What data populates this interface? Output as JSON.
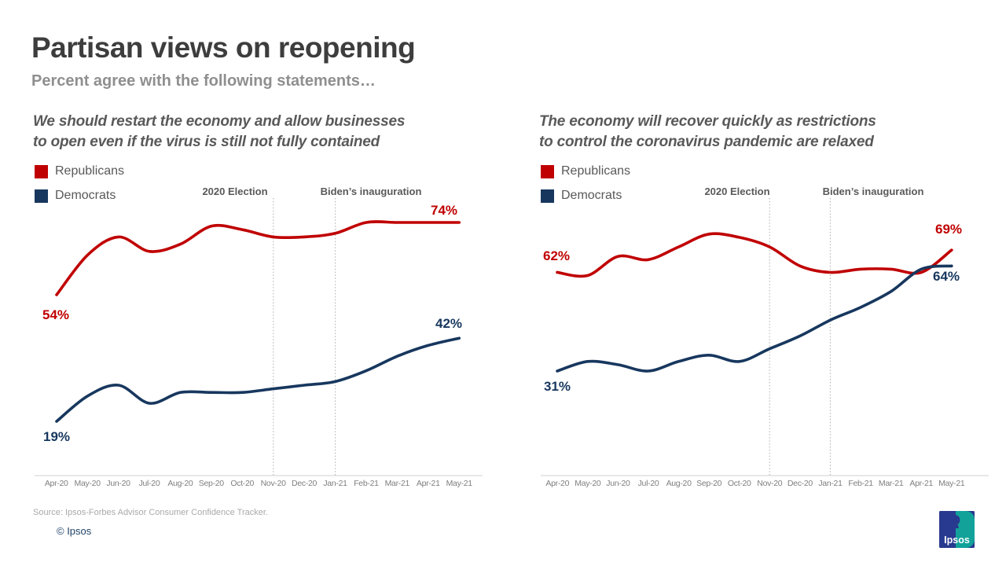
{
  "header": {
    "title": "Partisan views on reopening",
    "subtitle": "Percent agree with the following statements…"
  },
  "footer": {
    "source": "Source: Ipsos-Forbes Advisor Consumer Confidence Tracker.",
    "copyright": "© Ipsos"
  },
  "logo": {
    "text": "Ipsos",
    "blue": "#283a8f",
    "teal": "#12a29a"
  },
  "colors": {
    "republican_red": "#c00000",
    "democrat_navy": "#17375e",
    "title_gray": "#3d3d3d",
    "subtitle_gray": "#8f8f8f",
    "heading_gray": "#595959",
    "axis_line_gray": "#d9d9d9",
    "axis_label_gray": "#7f7f7f",
    "gridline_gray": "#adadad"
  },
  "chart_data": [
    {
      "type": "line",
      "title": "We should restart the economy and allow businesses to open even if the virus is still not fully contained",
      "heading_lines": [
        "We should restart the economy and allow businesses",
        "to open even if the virus is still not fully contained"
      ],
      "xlabel": "",
      "ylabel": "Percent agree",
      "ylim": [
        0,
        100
      ],
      "y_axis_visible": false,
      "grid": "vertical dotted markers at Nov-20 and Jan-21",
      "legend_position": "top-left",
      "categories": [
        "Apr-20",
        "May-20",
        "Jun-20",
        "Jul-20",
        "Aug-20",
        "Sep-20",
        "Oct-20",
        "Nov-20",
        "Dec-20",
        "Jan-21",
        "Feb-21",
        "Mar-21",
        "Apr-21",
        "May-21"
      ],
      "annotations": [
        {
          "label": "2020 Election",
          "at": "Nov-20"
        },
        {
          "label": "Biden’s inauguration",
          "at": "Jan-21"
        }
      ],
      "series": [
        {
          "name": "Republicans",
          "color": "#c00000",
          "values": [
            54,
            65,
            70,
            66,
            68,
            73,
            72,
            70,
            70,
            71,
            74,
            74,
            74,
            74
          ],
          "start_label": "54%",
          "end_label": "74%"
        },
        {
          "name": "Democrats",
          "color": "#17375e",
          "values": [
            19,
            26,
            29,
            24,
            27,
            27,
            27,
            28,
            29,
            30,
            33,
            37,
            40,
            42
          ],
          "start_label": "19%",
          "end_label": "42%"
        }
      ]
    },
    {
      "type": "line",
      "title": "The economy will recover quickly as restrictions to control the coronavirus pandemic are relaxed",
      "heading_lines": [
        "The economy will recover quickly as restrictions",
        "to control the coronavirus pandemic are relaxed"
      ],
      "xlabel": "",
      "ylabel": "Percent agree",
      "ylim": [
        0,
        100
      ],
      "y_axis_visible": false,
      "grid": "vertical dotted markers at Nov-20 and Jan-21",
      "legend_position": "top-left",
      "categories": [
        "Apr-20",
        "May-20",
        "Jun-20",
        "Jul-20",
        "Aug-20",
        "Sep-20",
        "Oct-20",
        "Nov-20",
        "Dec-20",
        "Jan-21",
        "Feb-21",
        "Mar-21",
        "Apr-21",
        "May-21"
      ],
      "annotations": [
        {
          "label": "2020 Election",
          "at": "Nov-20"
        },
        {
          "label": "Biden’s inauguration",
          "at": "Jan-21"
        }
      ],
      "series": [
        {
          "name": "Republicans",
          "color": "#c00000",
          "values": [
            62,
            61,
            67,
            66,
            70,
            74,
            73,
            70,
            64,
            62,
            63,
            63,
            62,
            69
          ],
          "start_label": "62%",
          "end_label": "69%"
        },
        {
          "name": "Democrats",
          "color": "#17375e",
          "values": [
            31,
            34,
            33,
            31,
            34,
            36,
            34,
            38,
            42,
            47,
            51,
            56,
            63,
            64
          ],
          "start_label": "31%",
          "end_label": "64%"
        }
      ]
    }
  ]
}
